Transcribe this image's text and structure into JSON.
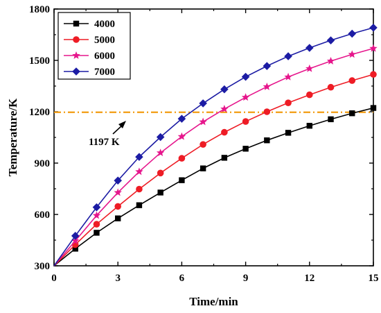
{
  "chart_data": {
    "type": "line",
    "title": "",
    "xlabel": "Time/min",
    "ylabel": "Temperature/K",
    "xlim": [
      0,
      15
    ],
    "ylim": [
      300,
      1800
    ],
    "xticks": [
      0,
      3,
      6,
      9,
      12,
      15
    ],
    "yticks": [
      300,
      600,
      900,
      1200,
      1500,
      1800
    ],
    "grid": false,
    "legend_position": "top-left",
    "x": [
      0,
      1,
      2,
      3,
      4,
      5,
      6,
      7,
      8,
      9,
      10,
      11,
      12,
      13,
      14,
      15
    ],
    "series": [
      {
        "name": "4000",
        "color": "#000000",
        "marker": "square",
        "values": [
          300,
          400,
          493,
          577,
          654,
          728,
          800,
          869,
          931,
          984,
          1033,
          1077,
          1118,
          1156,
          1191,
          1222
        ]
      },
      {
        "name": "5000",
        "color": "#ee1c25",
        "marker": "circle",
        "values": [
          300,
          424,
          543,
          647,
          748,
          842,
          928,
          1009,
          1080,
          1143,
          1200,
          1252,
          1299,
          1343,
          1382,
          1418
        ]
      },
      {
        "name": "6000",
        "color": "#e6168c",
        "marker": "star",
        "values": [
          300,
          446,
          594,
          728,
          850,
          960,
          1055,
          1141,
          1216,
          1284,
          1346,
          1403,
          1452,
          1496,
          1535,
          1570
        ]
      },
      {
        "name": "7000",
        "color": "#1c1ca4",
        "marker": "diamond",
        "values": [
          300,
          475,
          642,
          798,
          936,
          1052,
          1159,
          1249,
          1331,
          1404,
          1467,
          1524,
          1573,
          1617,
          1656,
          1691
        ]
      }
    ],
    "reference_line": {
      "value": 1197,
      "label": "1197 K",
      "color": "#f39c12",
      "style": "dash-dot"
    }
  }
}
